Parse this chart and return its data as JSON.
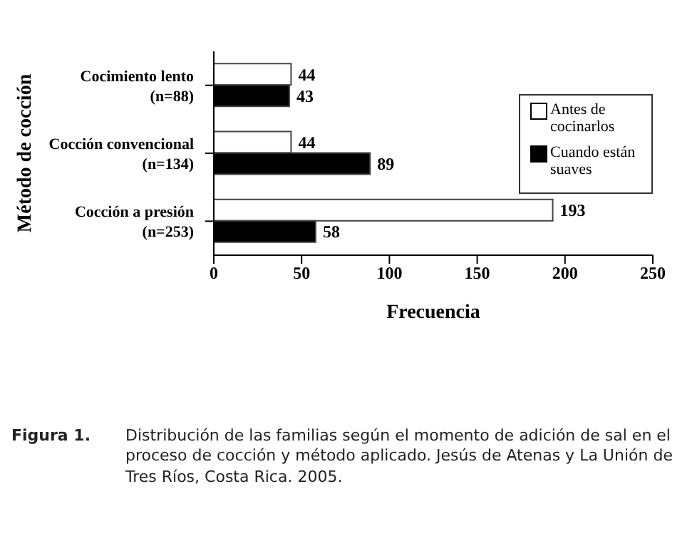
{
  "chart_data": {
    "type": "bar",
    "orientation": "horizontal",
    "xlabel": "Frecuencia",
    "ylabel": "Método de cocción",
    "categories": [
      "Cocimiento lento\n(n=88)",
      "Cocción convencional\n(n=134)",
      "Cocción a presión\n(n=253)"
    ],
    "series": [
      {
        "name": "Antes de cocinarlos",
        "color": "#ffffff",
        "values": [
          44,
          44,
          193
        ]
      },
      {
        "name": "Cuando están suaves",
        "color": "#000000",
        "values": [
          43,
          89,
          58
        ]
      }
    ],
    "xlim": [
      0,
      250
    ],
    "xticks": [
      0,
      50,
      100,
      150,
      200,
      250
    ],
    "data_labels": true,
    "grid": false,
    "legend": "right",
    "annotations": [
      "Figura 1.",
      "Distribución de las familias según el momento de adición de sal en el proceso de cocción y método aplicado.  Jesús de Atenas y La Unión de Tres Ríos, Costa Rica. 2005."
    ]
  }
}
